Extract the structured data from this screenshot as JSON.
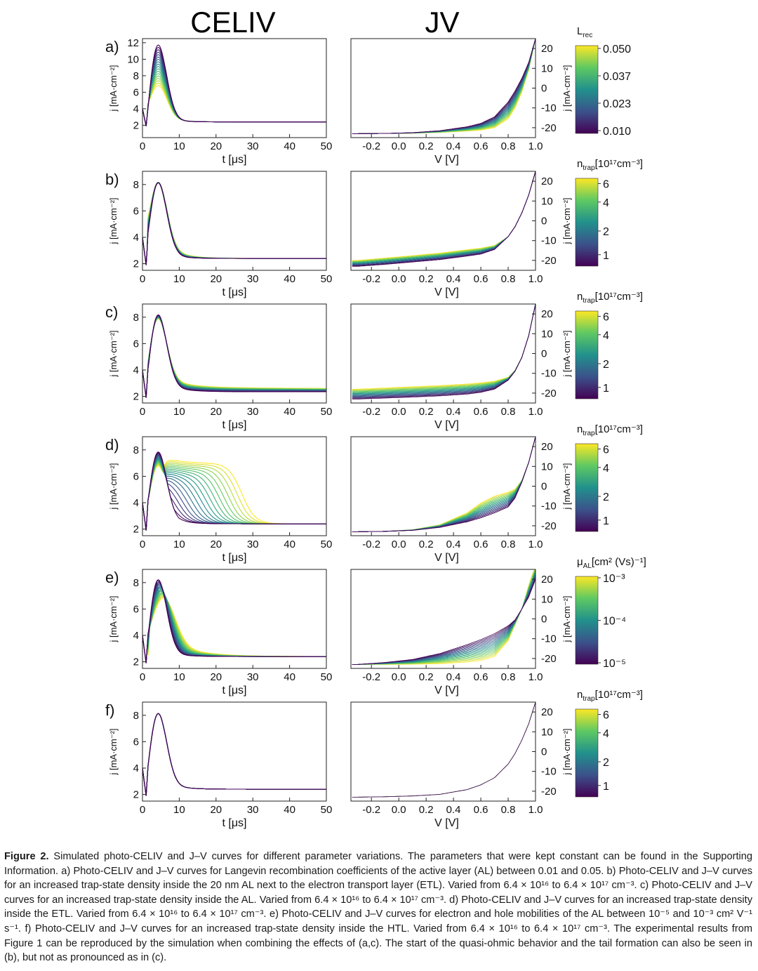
{
  "figure": {
    "col_titles": [
      "CELIV",
      "JV"
    ],
    "panels": [
      {
        "label": "a)",
        "cb_symbol": "L",
        "cb_sub": "rec",
        "cb_unit": "",
        "cb_ticks": [
          "0.050",
          "0.037",
          "0.023",
          "0.010"
        ],
        "celiv_yticks": [
          "2",
          "4",
          "6",
          "8",
          "10",
          "12"
        ]
      },
      {
        "label": "b)",
        "cb_symbol": "n",
        "cb_sub": "trap",
        "cb_unit": "[10¹⁷cm⁻³]",
        "cb_ticks": [
          "6",
          "4",
          "2",
          "1"
        ],
        "celiv_yticks": [
          "2",
          "4",
          "6",
          "8"
        ]
      },
      {
        "label": "c)",
        "cb_symbol": "n",
        "cb_sub": "trap",
        "cb_unit": "[10¹⁷cm⁻³]",
        "cb_ticks": [
          "6",
          "4",
          "2",
          "1"
        ],
        "celiv_yticks": [
          "2",
          "4",
          "6",
          "8"
        ]
      },
      {
        "label": "d)",
        "cb_symbol": "n",
        "cb_sub": "trap",
        "cb_unit": "[10¹⁷cm⁻³]",
        "cb_ticks": [
          "6",
          "4",
          "2",
          "1"
        ],
        "celiv_yticks": [
          "2",
          "4",
          "6",
          "8"
        ]
      },
      {
        "label": "e)",
        "cb_symbol": "μ",
        "cb_sub": "AL",
        "cb_unit": "[cm² (Vs)⁻¹]",
        "cb_ticks": [
          "10⁻³",
          "10⁻⁴",
          "10⁻⁵"
        ],
        "celiv_yticks": [
          "2",
          "4",
          "6",
          "8"
        ]
      },
      {
        "label": "f)",
        "cb_symbol": "n",
        "cb_sub": "trap",
        "cb_unit": "[10¹⁷cm⁻³]",
        "cb_ticks": [
          "6",
          "4",
          "2",
          "1"
        ],
        "celiv_yticks": [
          "2",
          "4",
          "6",
          "8"
        ]
      }
    ],
    "celiv_xticks": [
      "0",
      "10",
      "20",
      "30",
      "40",
      "50"
    ],
    "celiv_xlabel": "t [μs]",
    "celiv_ylabel": "j [mA·cm⁻²]",
    "jv_xticks": [
      "-0.2",
      "0.0",
      "0.2",
      "0.4",
      "0.6",
      "0.8",
      "1.0"
    ],
    "jv_xlabel": "V [V]",
    "jv_yticks": [
      "20",
      "10",
      "0",
      "-10",
      "-20"
    ],
    "jv_ylabel": "j [mA·cm⁻²]"
  },
  "chart_data": [
    {
      "type": "line",
      "panel": "a",
      "title": "CELIV",
      "xlabel": "t [μs]",
      "ylabel": "j [mA·cm⁻²]",
      "xlim": [
        0,
        50
      ],
      "ylim": [
        0.5,
        12.5
      ],
      "series_count": 18,
      "variation": "Langevin recombination coefficient L_rec 0.010–0.050",
      "peak_time": 4,
      "peak_range": [
        7,
        12.2
      ],
      "tail_value": 2.4
    },
    {
      "type": "line",
      "panel": "a",
      "title": "JV",
      "xlabel": "V [V]",
      "ylabel": "j [mA·cm⁻²]",
      "xlim": [
        -0.35,
        1.0
      ],
      "ylim": [
        -25,
        25
      ],
      "series_count": 18,
      "x": [
        -0.3,
        0.0,
        0.3,
        0.5,
        0.6,
        0.7,
        0.8,
        0.9,
        1.0
      ],
      "y_low_Lrec": [
        -23,
        -22.6,
        -21.5,
        -19.5,
        -17.5,
        -13.5,
        -6,
        6,
        25
      ],
      "y_high_Lrec": [
        -23,
        -22.6,
        -22,
        -21.5,
        -21,
        -20,
        -15,
        0,
        25
      ]
    },
    {
      "type": "line",
      "panel": "b",
      "title": "CELIV",
      "xlabel": "t [μs]",
      "ylabel": "j [mA·cm⁻²]",
      "xlim": [
        0,
        50
      ],
      "ylim": [
        1.5,
        9
      ],
      "series_count": 18,
      "variation": "n_trap in 20 nm AL next to ETL, 6.4×10¹⁶–6.4×10¹⁷ cm⁻³",
      "peak_value": 8.4,
      "tail_value": 2.4
    },
    {
      "type": "line",
      "panel": "b",
      "title": "JV",
      "xlabel": "V [V]",
      "ylabel": "j [mA·cm⁻²]",
      "xlim": [
        -0.35,
        1.0
      ],
      "ylim": [
        -25,
        25
      ],
      "series_count": 18,
      "x": [
        -0.3,
        0.6,
        0.8,
        0.9,
        1.0
      ],
      "y_low_ntrap": [
        -23,
        -16,
        -8,
        5,
        25
      ],
      "y_high_ntrap": [
        -20,
        -13,
        -8,
        5,
        25
      ]
    },
    {
      "type": "line",
      "panel": "c",
      "title": "CELIV",
      "xlabel": "t [μs]",
      "ylabel": "j [mA·cm⁻²]",
      "xlim": [
        0,
        50
      ],
      "ylim": [
        1.5,
        9
      ],
      "series_count": 18,
      "variation": "n_trap in AL, 6.4×10¹⁶–6.4×10¹⁷ cm⁻³",
      "peak_value": 8.4,
      "tail_range": [
        2.4,
        2.7
      ]
    },
    {
      "type": "line",
      "panel": "c",
      "title": "JV",
      "xlabel": "V [V]",
      "ylabel": "j [mA·cm⁻²]",
      "xlim": [
        -0.35,
        1.0
      ],
      "ylim": [
        -25,
        25
      ],
      "series_count": 18,
      "x": [
        -0.3,
        0.6,
        0.8,
        0.9,
        1.0
      ],
      "y_low_ntrap": [
        -23,
        -19,
        -13,
        0,
        25
      ],
      "y_high_ntrap": [
        -18,
        -15,
        -12,
        0,
        25
      ]
    },
    {
      "type": "line",
      "panel": "d",
      "title": "CELIV",
      "xlabel": "t [μs]",
      "ylabel": "j [mA·cm⁻²]",
      "xlim": [
        0,
        50
      ],
      "ylim": [
        1.5,
        9
      ],
      "series_count": 18,
      "variation": "n_trap in ETL, 6.4×10¹⁶–6.4×10¹⁷ cm⁻³",
      "peak_range": [
        7,
        8.1
      ],
      "plateau_end_range": [
        5,
        28
      ],
      "tail_value": 2.4
    },
    {
      "type": "line",
      "panel": "d",
      "title": "JV",
      "xlabel": "V [V]",
      "ylabel": "j [mA·cm⁻²]",
      "xlim": [
        -0.35,
        1.0
      ],
      "ylim": [
        -25,
        25
      ],
      "series_count": 18,
      "x": [
        -0.3,
        0.4,
        0.6,
        0.8,
        0.9,
        1.0
      ],
      "y_low_ntrap": [
        -23,
        -19,
        -16,
        -10,
        5,
        25
      ],
      "y_high_ntrap": [
        -23,
        -15,
        -7,
        -3,
        5,
        25
      ]
    },
    {
      "type": "line",
      "panel": "e",
      "title": "CELIV",
      "xlabel": "t [μs]",
      "ylabel": "j [mA·cm⁻²]",
      "xlim": [
        0,
        50
      ],
      "ylim": [
        1.5,
        9
      ],
      "series_count": 18,
      "variation": "electron and hole mobility in AL, 10⁻⁵–10⁻³ cm² V⁻¹ s⁻¹",
      "peak_range": [
        7,
        8.5
      ],
      "tail_value": 2.4
    },
    {
      "type": "line",
      "panel": "e",
      "title": "JV",
      "xlabel": "V [V]",
      "ylabel": "j [mA·cm⁻²]",
      "xlim": [
        -0.35,
        1.0
      ],
      "ylim": [
        -25,
        25
      ],
      "series_count": 18,
      "x": [
        -0.3,
        0.3,
        0.6,
        0.85,
        1.0
      ],
      "y_low_mu": [
        -23,
        -17,
        -10,
        0,
        20
      ],
      "y_high_mu": [
        -23,
        -22,
        -20,
        0,
        27
      ]
    },
    {
      "type": "line",
      "panel": "f",
      "title": "CELIV",
      "xlabel": "t [μs]",
      "ylabel": "j [mA·cm⁻²]",
      "xlim": [
        0,
        50
      ],
      "ylim": [
        1.5,
        9
      ],
      "series_count": 18,
      "variation": "n_trap in HTL, 6.4×10¹⁶–6.4×10¹⁷ cm⁻³",
      "peak_value": 8.4,
      "tail_value": 2.4
    },
    {
      "type": "line",
      "panel": "f",
      "title": "JV",
      "xlabel": "V [V]",
      "ylabel": "j [mA·cm⁻²]",
      "xlim": [
        -0.35,
        1.0
      ],
      "ylim": [
        -25,
        25
      ],
      "series_count": 18,
      "x": [
        -0.3,
        0.3,
        0.5,
        0.6,
        0.7,
        0.8,
        0.9,
        1.0
      ],
      "y": [
        -23,
        -21.5,
        -19,
        -16.5,
        -13,
        -6,
        6,
        25
      ]
    }
  ],
  "caption": {
    "label": "Figure 2.",
    "text": "Simulated photo-CELIV and J–V curves for different parameter variations. The parameters that were kept constant can be found in the Supporting Information. a) Photo-CELIV and J–V curves for Langevin recombination coefficients of the active layer (AL) between 0.01 and 0.05. b) Photo-CELIV and J–V curves for an increased trap-state density inside the 20 nm AL next to the electron transport layer (ETL). Varied from 6.4 × 10¹⁶ to 6.4 × 10¹⁷ cm⁻³. c) Photo-CELIV and J–V curves for an increased trap-state density inside the AL. Varied from 6.4 × 10¹⁶ to 6.4 × 10¹⁷ cm⁻³. d) Photo-CELIV and J–V curves for an increased trap-state density inside the ETL. Varied from 6.4 × 10¹⁶ to 6.4 × 10¹⁷ cm⁻³. e) Photo-CELIV and J–V curves for electron and hole mobilities of the AL between 10⁻⁵ and 10⁻³ cm² V⁻¹ s⁻¹. f) Photo-CELIV and J–V curves for an increased trap-state density inside the HTL. Varied from 6.4 × 10¹⁶ to 6.4 × 10¹⁷ cm⁻³. The experimental results from Figure 1 can be reproduced by the simulation when combining the effects of (a,c). The start of the quasi-ohmic behavior and the tail formation can also be seen in (b), but not as pronounced as in (c)."
  }
}
